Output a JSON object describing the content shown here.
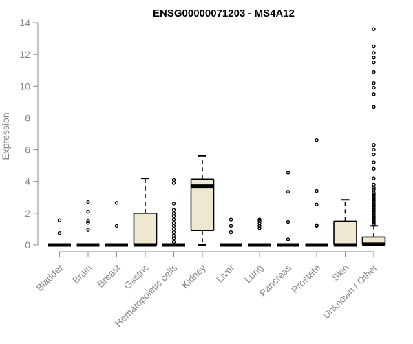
{
  "chart_data": {
    "type": "box",
    "title": "ENSG00000071203 - MS4A12",
    "ylabel": "Expression",
    "xlabel": "",
    "ylim": [
      0,
      14
    ],
    "yticks": [
      0,
      2,
      4,
      6,
      8,
      10,
      12,
      14
    ],
    "box_fill": "#efe8d0",
    "categories": [
      "Bladder",
      "Brain",
      "Breast",
      "Gastric",
      "Hematopoietic cells",
      "Kidney",
      "Liver",
      "Lung",
      "Pancreas",
      "Prostate",
      "Skin",
      "Unknown / Other"
    ],
    "boxes": [
      {
        "q1": 0,
        "median": 0,
        "q3": 0,
        "whisker_low": 0,
        "whisker_high": 0,
        "outliers": [
          0.75,
          1.55
        ]
      },
      {
        "q1": 0,
        "median": 0,
        "q3": 0,
        "whisker_low": 0,
        "whisker_high": 0,
        "outliers": [
          0.95,
          1.4,
          1.5,
          2.1,
          2.7
        ]
      },
      {
        "q1": 0,
        "median": 0,
        "q3": 0,
        "whisker_low": 0,
        "whisker_high": 0,
        "outliers": [
          1.2,
          2.65
        ]
      },
      {
        "q1": 0,
        "median": 0,
        "q3": 2.0,
        "whisker_low": 0,
        "whisker_high": 4.2,
        "outliers": []
      },
      {
        "q1": 0,
        "median": 0,
        "q3": 0,
        "whisker_low": 0,
        "whisker_high": 0,
        "outliers": [
          0.2,
          0.4,
          0.6,
          0.8,
          1.0,
          1.2,
          1.4,
          1.6,
          1.8,
          2.0,
          2.2,
          2.6,
          3.9,
          4.1
        ]
      },
      {
        "q1": 0.9,
        "median": 3.7,
        "q3": 4.15,
        "whisker_low": 0,
        "whisker_high": 5.6,
        "outliers": []
      },
      {
        "q1": 0,
        "median": 0,
        "q3": 0,
        "whisker_low": 0,
        "whisker_high": 0,
        "outliers": [
          0.8,
          1.2,
          1.6
        ]
      },
      {
        "q1": 0,
        "median": 0,
        "q3": 0,
        "whisker_low": 0,
        "whisker_high": 0,
        "outliers": [
          1.05,
          1.2,
          1.35,
          1.5,
          1.6
        ]
      },
      {
        "q1": 0,
        "median": 0,
        "q3": 0,
        "whisker_low": 0,
        "whisker_high": 0,
        "outliers": [
          0.35,
          1.45,
          3.35,
          4.55
        ]
      },
      {
        "q1": 0,
        "median": 0,
        "q3": 0,
        "whisker_low": 0,
        "whisker_high": 0,
        "outliers": [
          1.2,
          1.25,
          2.55,
          3.4,
          6.6
        ]
      },
      {
        "q1": 0,
        "median": 0,
        "q3": 1.5,
        "whisker_low": 0,
        "whisker_high": 2.85,
        "outliers": []
      },
      {
        "q1": 0,
        "median": 0.05,
        "q3": 0.5,
        "whisker_low": 0,
        "whisker_high": 1.2,
        "outliers": [
          1.3,
          1.4,
          1.5,
          1.6,
          1.7,
          1.8,
          1.9,
          2.0,
          2.1,
          2.2,
          2.3,
          2.4,
          2.5,
          2.6,
          2.7,
          2.8,
          2.9,
          3.0,
          3.1,
          3.2,
          3.3,
          3.5,
          3.6,
          3.8,
          4.2,
          4.8,
          5.2,
          5.7,
          6.0,
          6.3,
          8.7,
          9.5,
          9.9,
          10.2,
          10.9,
          11.5,
          11.8,
          12.1,
          12.5,
          13.6
        ]
      }
    ]
  }
}
